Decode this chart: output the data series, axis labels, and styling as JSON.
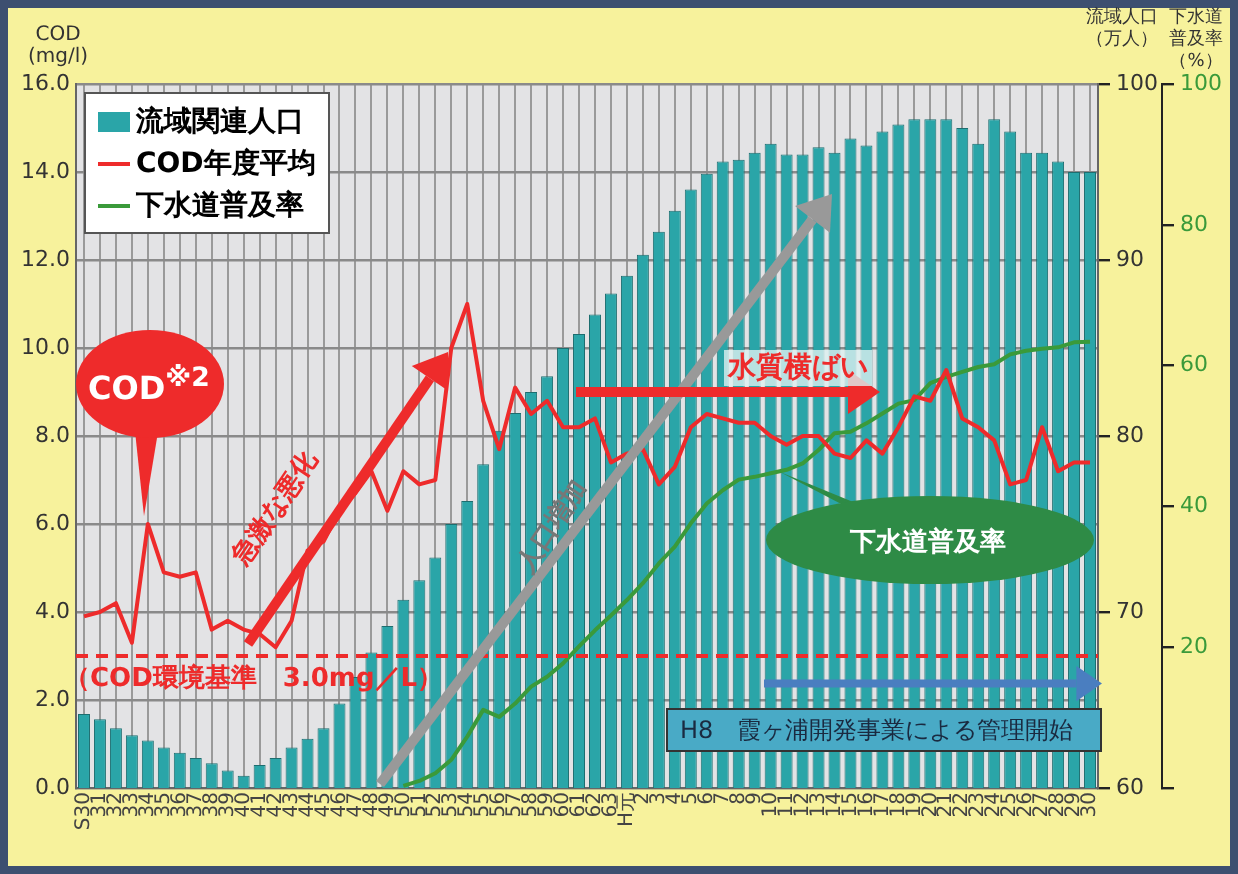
{
  "chart_data": {
    "type": "bar",
    "ylabel": "COD (mg/l)",
    "y2label": "流域人口（万人）",
    "y3label": "下水道普及率（%）",
    "categories": [
      "S30",
      "31",
      "32",
      "33",
      "34",
      "35",
      "36",
      "37",
      "38",
      "39",
      "40",
      "41",
      "42",
      "43",
      "44",
      "45",
      "46",
      "47",
      "48",
      "49",
      "50",
      "51",
      "52",
      "53",
      "54",
      "55",
      "56",
      "57",
      "58",
      "59",
      "60",
      "61",
      "62",
      "63",
      "H元",
      "2",
      "3",
      "4",
      "5",
      "6",
      "7",
      "8",
      "9",
      "10",
      "11",
      "12",
      "13",
      "14",
      "15",
      "16",
      "17",
      "18",
      "19",
      "20",
      "21",
      "22",
      "23",
      "24",
      "25",
      "26",
      "27",
      "28",
      "29",
      "30"
    ],
    "series": [
      {
        "name": "流域関連人口",
        "type": "bar",
        "axis": "y2",
        "color": "#2aa5a8",
        "values": [
          64.2,
          63.9,
          63.4,
          63.0,
          62.7,
          62.3,
          62.0,
          61.7,
          61.4,
          61.0,
          60.7,
          61.3,
          61.7,
          62.3,
          62.8,
          63.4,
          64.8,
          66.3,
          67.7,
          69.2,
          70.7,
          71.8,
          73.1,
          75.0,
          76.3,
          78.4,
          80.3,
          81.3,
          82.5,
          83.4,
          85.0,
          85.8,
          86.9,
          88.1,
          89.1,
          90.3,
          91.6,
          92.8,
          94.0,
          94.9,
          95.6,
          95.7,
          96.1,
          96.6,
          96.0,
          96.0,
          96.4,
          96.1,
          96.9,
          96.5,
          97.3,
          97.7,
          98.0,
          98.0,
          98.0,
          97.5,
          96.6,
          98.0,
          97.3,
          96.1,
          96.1,
          95.6,
          95.0,
          95.0
        ]
      },
      {
        "name": "COD年度平均",
        "type": "line",
        "axis": "y",
        "color": "#ee2b2b",
        "values": [
          3.9,
          4.0,
          4.2,
          3.3,
          6.0,
          4.9,
          4.8,
          4.9,
          3.6,
          3.8,
          3.6,
          3.5,
          3.2,
          3.8,
          5.4,
          5.6,
          6.3,
          6.7,
          7.2,
          6.3,
          7.2,
          6.9,
          7.0,
          10.0,
          11.0,
          8.8,
          7.7,
          9.1,
          8.5,
          8.8,
          8.2,
          8.2,
          8.4,
          7.4,
          7.6,
          7.7,
          6.9,
          7.3,
          8.2,
          8.5,
          8.4,
          8.3,
          8.3,
          8.0,
          7.8,
          8.0,
          8.0,
          7.6,
          7.5,
          7.9,
          7.6,
          8.2,
          8.9,
          8.8,
          9.5,
          8.4,
          8.2,
          7.9,
          6.9,
          7.0,
          8.2,
          7.2,
          7.4,
          7.4
        ]
      },
      {
        "name": "下水道普及率",
        "type": "line",
        "axis": "y3",
        "color": "#3a9a3a",
        "values": [
          null,
          null,
          null,
          null,
          null,
          null,
          null,
          null,
          null,
          null,
          null,
          null,
          null,
          null,
          null,
          null,
          null,
          null,
          null,
          null,
          0.3,
          1.0,
          2.1,
          4.0,
          7.3,
          11.1,
          10.1,
          12.0,
          14.4,
          15.8,
          17.7,
          20.1,
          22.4,
          24.5,
          26.7,
          29.1,
          31.9,
          34.3,
          37.6,
          40.4,
          42.3,
          43.8,
          44.2,
          44.7,
          45.2,
          46.1,
          48.0,
          50.4,
          50.6,
          51.8,
          53.2,
          54.6,
          55.1,
          57.5,
          58.4,
          59.1,
          59.8,
          60.2,
          61.6,
          62.1,
          62.4,
          62.6,
          63.3,
          63.4
        ]
      }
    ],
    "ylim": [
      0,
      16
    ],
    "yticks": [
      {
        "value": 0,
        "label": "0.0"
      },
      {
        "value": 2,
        "label": "2.0"
      },
      {
        "value": 4,
        "label": "4.0"
      },
      {
        "value": 6,
        "label": "6.0"
      },
      {
        "value": 8,
        "label": "8.0"
      },
      {
        "value": 10,
        "label": "10.0"
      },
      {
        "value": 12,
        "label": "12.0"
      },
      {
        "value": 14,
        "label": "14.0"
      },
      {
        "value": 16,
        "label": "16.0"
      }
    ],
    "y2lim": [
      60,
      100
    ],
    "y2ticks": [
      60,
      70,
      80,
      90,
      100
    ],
    "y3lim": [
      0,
      100
    ],
    "y3ticks": [
      {
        "value": 0,
        "label": null
      },
      20,
      40,
      60,
      80,
      100
    ],
    "ref_lines": [
      {
        "axis": "y",
        "value": 3,
        "label": "（COD環境基準　3.0mg／L）",
        "color": "#ee2b2b",
        "line_style": "dashed"
      }
    ],
    "annotations": [
      "COD$^{※2}$",
      "急激な悪化",
      "人口増加",
      {
        "text": "水質横ばい",
        "y": 9.0
      },
      "下水道普及率",
      "H8　霞ヶ浦開発事業による管理開始"
    ],
    "legend": "top left",
    "grid": true,
    "marker": "none",
    "line_style": "solid"
  }
}
